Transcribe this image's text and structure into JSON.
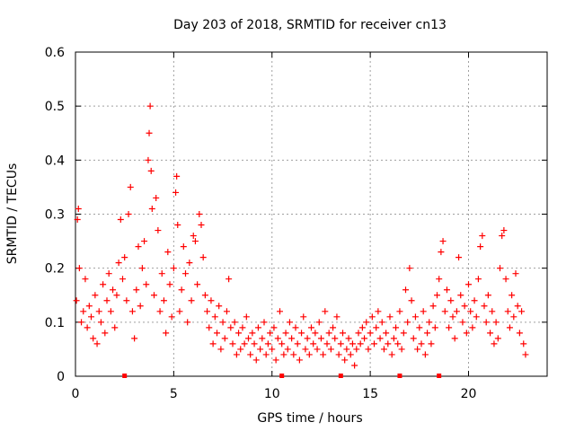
{
  "chart_data": {
    "type": "scatter",
    "title": "Day 203 of 2018, SRMTID for receiver cn13",
    "xlabel": "GPS time / hours",
    "ylabel": "SRMTID / TECUs",
    "xlim": [
      0,
      24
    ],
    "ylim": [
      0,
      0.6
    ],
    "xticks": [
      0,
      5,
      10,
      15,
      20
    ],
    "yticks": [
      0,
      0.1,
      0.2,
      0.3,
      0.4,
      0.5,
      0.6
    ],
    "xtick_labels": [
      "0",
      "5",
      "10",
      "15",
      "20"
    ],
    "ytick_labels": [
      "0",
      "0.1",
      "0.2",
      "0.3",
      "0.4",
      "0.5",
      "0.6"
    ],
    "grid": true,
    "marker": "plus",
    "color": "#ff0000",
    "zero_markers_x": [
      2.5,
      10.5,
      13.5,
      16.5,
      18.5
    ],
    "series": [
      {
        "name": "SRMTID",
        "points": [
          [
            0.05,
            0.14
          ],
          [
            0.1,
            0.29
          ],
          [
            0.15,
            0.31
          ],
          [
            0.2,
            0.2
          ],
          [
            0.3,
            0.1
          ],
          [
            0.4,
            0.12
          ],
          [
            0.5,
            0.18
          ],
          [
            0.6,
            0.09
          ],
          [
            0.7,
            0.13
          ],
          [
            0.8,
            0.11
          ],
          [
            0.9,
            0.07
          ],
          [
            1.0,
            0.15
          ],
          [
            1.1,
            0.06
          ],
          [
            1.2,
            0.12
          ],
          [
            1.3,
            0.1
          ],
          [
            1.4,
            0.17
          ],
          [
            1.5,
            0.08
          ],
          [
            1.6,
            0.14
          ],
          [
            1.7,
            0.19
          ],
          [
            1.8,
            0.12
          ],
          [
            1.9,
            0.16
          ],
          [
            2.0,
            0.09
          ],
          [
            2.1,
            0.15
          ],
          [
            2.2,
            0.21
          ],
          [
            2.3,
            0.29
          ],
          [
            2.4,
            0.18
          ],
          [
            2.5,
            0.22
          ],
          [
            2.6,
            0.14
          ],
          [
            2.7,
            0.3
          ],
          [
            2.8,
            0.35
          ],
          [
            2.9,
            0.12
          ],
          [
            3.0,
            0.07
          ],
          [
            3.1,
            0.16
          ],
          [
            3.2,
            0.24
          ],
          [
            3.3,
            0.13
          ],
          [
            3.4,
            0.2
          ],
          [
            3.5,
            0.25
          ],
          [
            3.6,
            0.17
          ],
          [
            3.7,
            0.4
          ],
          [
            3.75,
            0.45
          ],
          [
            3.8,
            0.5
          ],
          [
            3.85,
            0.38
          ],
          [
            3.9,
            0.31
          ],
          [
            4.0,
            0.15
          ],
          [
            4.1,
            0.33
          ],
          [
            4.2,
            0.27
          ],
          [
            4.3,
            0.12
          ],
          [
            4.4,
            0.19
          ],
          [
            4.5,
            0.14
          ],
          [
            4.6,
            0.08
          ],
          [
            4.7,
            0.23
          ],
          [
            4.8,
            0.17
          ],
          [
            4.9,
            0.11
          ],
          [
            5.0,
            0.2
          ],
          [
            5.1,
            0.34
          ],
          [
            5.15,
            0.37
          ],
          [
            5.2,
            0.28
          ],
          [
            5.3,
            0.12
          ],
          [
            5.4,
            0.16
          ],
          [
            5.5,
            0.24
          ],
          [
            5.6,
            0.19
          ],
          [
            5.7,
            0.1
          ],
          [
            5.8,
            0.21
          ],
          [
            5.9,
            0.14
          ],
          [
            6.0,
            0.26
          ],
          [
            6.1,
            0.25
          ],
          [
            6.2,
            0.17
          ],
          [
            6.3,
            0.3
          ],
          [
            6.4,
            0.28
          ],
          [
            6.5,
            0.22
          ],
          [
            6.6,
            0.15
          ],
          [
            6.7,
            0.12
          ],
          [
            6.8,
            0.09
          ],
          [
            6.9,
            0.14
          ],
          [
            7.0,
            0.06
          ],
          [
            7.1,
            0.11
          ],
          [
            7.2,
            0.08
          ],
          [
            7.3,
            0.13
          ],
          [
            7.4,
            0.05
          ],
          [
            7.5,
            0.1
          ],
          [
            7.6,
            0.07
          ],
          [
            7.7,
            0.12
          ],
          [
            7.8,
            0.18
          ],
          [
            7.9,
            0.09
          ],
          [
            8.0,
            0.06
          ],
          [
            8.1,
            0.1
          ],
          [
            8.2,
            0.04
          ],
          [
            8.3,
            0.08
          ],
          [
            8.4,
            0.05
          ],
          [
            8.5,
            0.09
          ],
          [
            8.6,
            0.06
          ],
          [
            8.7,
            0.11
          ],
          [
            8.8,
            0.07
          ],
          [
            8.9,
            0.04
          ],
          [
            9.0,
            0.08
          ],
          [
            9.1,
            0.06
          ],
          [
            9.2,
            0.03
          ],
          [
            9.3,
            0.09
          ],
          [
            9.4,
            0.05
          ],
          [
            9.5,
            0.07
          ],
          [
            9.6,
            0.1
          ],
          [
            9.7,
            0.04
          ],
          [
            9.8,
            0.06
          ],
          [
            9.9,
            0.08
          ],
          [
            10.0,
            0.05
          ],
          [
            10.1,
            0.09
          ],
          [
            10.2,
            0.03
          ],
          [
            10.3,
            0.07
          ],
          [
            10.4,
            0.12
          ],
          [
            10.5,
            0.06
          ],
          [
            10.6,
            0.04
          ],
          [
            10.7,
            0.08
          ],
          [
            10.8,
            0.05
          ],
          [
            10.9,
            0.1
          ],
          [
            11.0,
            0.07
          ],
          [
            11.1,
            0.04
          ],
          [
            11.2,
            0.09
          ],
          [
            11.3,
            0.06
          ],
          [
            11.4,
            0.03
          ],
          [
            11.5,
            0.08
          ],
          [
            11.6,
            0.11
          ],
          [
            11.7,
            0.05
          ],
          [
            11.8,
            0.07
          ],
          [
            11.9,
            0.04
          ],
          [
            12.0,
            0.09
          ],
          [
            12.1,
            0.06
          ],
          [
            12.2,
            0.08
          ],
          [
            12.3,
            0.05
          ],
          [
            12.4,
            0.1
          ],
          [
            12.5,
            0.07
          ],
          [
            12.6,
            0.04
          ],
          [
            12.7,
            0.12
          ],
          [
            12.8,
            0.06
          ],
          [
            12.9,
            0.08
          ],
          [
            13.0,
            0.05
          ],
          [
            13.1,
            0.09
          ],
          [
            13.2,
            0.07
          ],
          [
            13.3,
            0.11
          ],
          [
            13.4,
            0.04
          ],
          [
            13.5,
            0.06
          ],
          [
            13.6,
            0.08
          ],
          [
            13.7,
            0.03
          ],
          [
            13.8,
            0.05
          ],
          [
            13.9,
            0.07
          ],
          [
            14.0,
            0.04
          ],
          [
            14.1,
            0.06
          ],
          [
            14.2,
            0.02
          ],
          [
            14.3,
            0.05
          ],
          [
            14.4,
            0.08
          ],
          [
            14.5,
            0.06
          ],
          [
            14.6,
            0.09
          ],
          [
            14.7,
            0.07
          ],
          [
            14.8,
            0.1
          ],
          [
            14.9,
            0.05
          ],
          [
            15.0,
            0.08
          ],
          [
            15.1,
            0.11
          ],
          [
            15.2,
            0.06
          ],
          [
            15.3,
            0.09
          ],
          [
            15.4,
            0.12
          ],
          [
            15.5,
            0.07
          ],
          [
            15.6,
            0.1
          ],
          [
            15.7,
            0.05
          ],
          [
            15.8,
            0.08
          ],
          [
            15.9,
            0.06
          ],
          [
            16.0,
            0.11
          ],
          [
            16.1,
            0.04
          ],
          [
            16.2,
            0.07
          ],
          [
            16.3,
            0.09
          ],
          [
            16.4,
            0.06
          ],
          [
            16.5,
            0.12
          ],
          [
            16.6,
            0.05
          ],
          [
            16.7,
            0.08
          ],
          [
            16.8,
            0.16
          ],
          [
            16.9,
            0.1
          ],
          [
            17.0,
            0.2
          ],
          [
            17.1,
            0.14
          ],
          [
            17.2,
            0.07
          ],
          [
            17.3,
            0.11
          ],
          [
            17.4,
            0.05
          ],
          [
            17.5,
            0.09
          ],
          [
            17.6,
            0.06
          ],
          [
            17.7,
            0.12
          ],
          [
            17.8,
            0.04
          ],
          [
            17.9,
            0.08
          ],
          [
            18.0,
            0.1
          ],
          [
            18.1,
            0.06
          ],
          [
            18.2,
            0.13
          ],
          [
            18.3,
            0.09
          ],
          [
            18.4,
            0.15
          ],
          [
            18.5,
            0.18
          ],
          [
            18.6,
            0.23
          ],
          [
            18.7,
            0.25
          ],
          [
            18.8,
            0.12
          ],
          [
            18.9,
            0.16
          ],
          [
            19.0,
            0.09
          ],
          [
            19.1,
            0.14
          ],
          [
            19.2,
            0.11
          ],
          [
            19.3,
            0.07
          ],
          [
            19.4,
            0.12
          ],
          [
            19.5,
            0.22
          ],
          [
            19.6,
            0.15
          ],
          [
            19.7,
            0.1
          ],
          [
            19.8,
            0.13
          ],
          [
            19.9,
            0.08
          ],
          [
            20.0,
            0.17
          ],
          [
            20.1,
            0.12
          ],
          [
            20.2,
            0.09
          ],
          [
            20.3,
            0.14
          ],
          [
            20.4,
            0.11
          ],
          [
            20.5,
            0.18
          ],
          [
            20.6,
            0.24
          ],
          [
            20.7,
            0.26
          ],
          [
            20.8,
            0.13
          ],
          [
            20.9,
            0.1
          ],
          [
            21.0,
            0.15
          ],
          [
            21.1,
            0.08
          ],
          [
            21.2,
            0.12
          ],
          [
            21.3,
            0.06
          ],
          [
            21.4,
            0.1
          ],
          [
            21.5,
            0.07
          ],
          [
            21.6,
            0.2
          ],
          [
            21.7,
            0.26
          ],
          [
            21.8,
            0.27
          ],
          [
            21.9,
            0.18
          ],
          [
            22.0,
            0.12
          ],
          [
            22.1,
            0.09
          ],
          [
            22.2,
            0.15
          ],
          [
            22.3,
            0.11
          ],
          [
            22.4,
            0.19
          ],
          [
            22.5,
            0.13
          ],
          [
            22.6,
            0.08
          ],
          [
            22.7,
            0.12
          ],
          [
            22.8,
            0.06
          ],
          [
            22.9,
            0.04
          ]
        ]
      }
    ]
  }
}
